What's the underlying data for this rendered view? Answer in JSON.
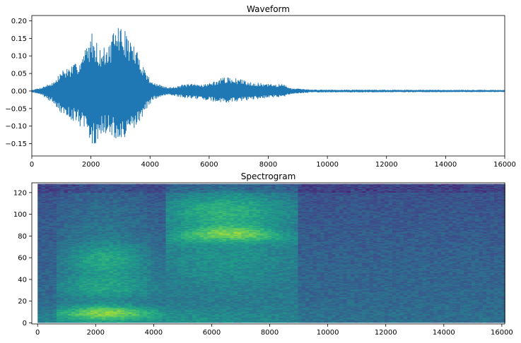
{
  "chart_data": [
    {
      "type": "line",
      "title": "Waveform",
      "xlim": [
        0,
        16000
      ],
      "ylim": [
        -0.185,
        0.215
      ],
      "xticks": [
        0,
        2000,
        4000,
        6000,
        8000,
        10000,
        12000,
        14000,
        16000
      ],
      "yticks": [
        0.2,
        0.15,
        0.1,
        0.05,
        0.0,
        -0.05,
        -0.1,
        -0.15
      ],
      "xtick_labels": [
        "0",
        "2000",
        "4000",
        "6000",
        "8000",
        "10000",
        "12000",
        "14000",
        "16000"
      ],
      "ytick_labels": [
        "0.20",
        "0.15",
        "0.10",
        "0.05",
        "0.00",
        "−0.05",
        "−0.10",
        "−0.15"
      ],
      "color": "#1f77b4",
      "envelope": [
        {
          "x": 0,
          "max": 0.003,
          "min": -0.003
        },
        {
          "x": 300,
          "max": 0.01,
          "min": -0.01
        },
        {
          "x": 800,
          "max": 0.03,
          "min": -0.04
        },
        {
          "x": 1000,
          "max": 0.06,
          "min": -0.07
        },
        {
          "x": 1300,
          "max": 0.07,
          "min": -0.08
        },
        {
          "x": 1500,
          "max": 0.08,
          "min": -0.09
        },
        {
          "x": 1750,
          "max": 0.11,
          "min": -0.11
        },
        {
          "x": 2050,
          "max": 0.17,
          "min": -0.165
        },
        {
          "x": 2300,
          "max": 0.12,
          "min": -0.13
        },
        {
          "x": 2600,
          "max": 0.13,
          "min": -0.12
        },
        {
          "x": 2900,
          "max": 0.195,
          "min": -0.15
        },
        {
          "x": 3100,
          "max": 0.18,
          "min": -0.145
        },
        {
          "x": 3400,
          "max": 0.14,
          "min": -0.12
        },
        {
          "x": 3700,
          "max": 0.09,
          "min": -0.08
        },
        {
          "x": 3900,
          "max": 0.05,
          "min": -0.05
        },
        {
          "x": 4100,
          "max": 0.025,
          "min": -0.025
        },
        {
          "x": 4600,
          "max": 0.01,
          "min": -0.012
        },
        {
          "x": 5200,
          "max": 0.02,
          "min": -0.02
        },
        {
          "x": 5800,
          "max": 0.02,
          "min": -0.025
        },
        {
          "x": 6100,
          "max": 0.025,
          "min": -0.03
        },
        {
          "x": 6500,
          "max": 0.04,
          "min": -0.035
        },
        {
          "x": 7000,
          "max": 0.035,
          "min": -0.03
        },
        {
          "x": 7500,
          "max": 0.025,
          "min": -0.025
        },
        {
          "x": 8000,
          "max": 0.02,
          "min": -0.02
        },
        {
          "x": 8500,
          "max": 0.02,
          "min": -0.018
        },
        {
          "x": 8800,
          "max": 0.008,
          "min": -0.008
        },
        {
          "x": 9500,
          "max": 0.004,
          "min": -0.004
        },
        {
          "x": 16000,
          "max": 0.003,
          "min": -0.003
        }
      ]
    },
    {
      "type": "heatmap",
      "title": "Spectrogram",
      "xlim": [
        -200,
        16100
      ],
      "ylim": [
        -1,
        129
      ],
      "xticks": [
        0,
        2000,
        4000,
        6000,
        8000,
        10000,
        12000,
        14000,
        16000
      ],
      "yticks": [
        120,
        100,
        80,
        60,
        40,
        20,
        0
      ],
      "xtick_labels": [
        "0",
        "2000",
        "4000",
        "6000",
        "8000",
        "10000",
        "12000",
        "14000",
        "16000"
      ],
      "ytick_labels": [
        "120",
        "100",
        "80",
        "60",
        "40",
        "20",
        "0"
      ],
      "colormap": "viridis",
      "rows": 129,
      "columns": 124
    }
  ]
}
